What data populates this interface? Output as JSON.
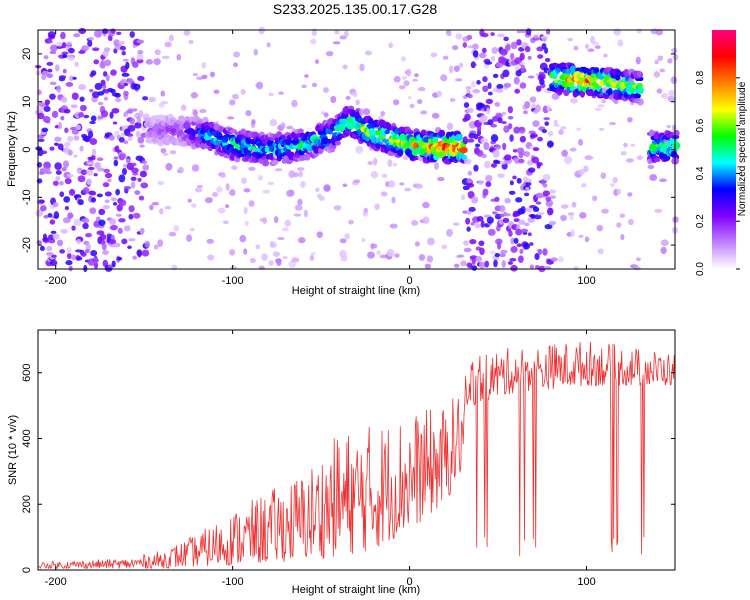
{
  "title": "S233.2025.135.00.17.G28",
  "chart_data": [
    {
      "type": "heatmap",
      "name": "spectrogram",
      "xlabel": "Height of straight line (km)",
      "ylabel": "Frequency (Hz)",
      "xlim": [
        -210,
        150
      ],
      "ylim": [
        -25,
        25
      ],
      "xticks": [
        -200,
        -100,
        0,
        100
      ],
      "yticks": [
        -20,
        -10,
        0,
        10,
        20
      ],
      "colorbar": {
        "label": "Normalized spectral amplitude",
        "range": [
          0,
          1
        ],
        "ticks": [
          0.0,
          0.2,
          0.4,
          0.6,
          0.8
        ],
        "colormap": [
          "#ffffff",
          "#c080ff",
          "#8000ff",
          "#0000ff",
          "#00ffff",
          "#00ff00",
          "#ffff00",
          "#ff8000",
          "#ff0000",
          "#ff0080"
        ]
      },
      "ridge": {
        "description_points": [
          {
            "x": -150,
            "freq": 4,
            "amp": 0.15
          },
          {
            "x": -130,
            "freq": 4,
            "amp": 0.2
          },
          {
            "x": -115,
            "freq": 3,
            "amp": 0.45
          },
          {
            "x": -100,
            "freq": 1,
            "amp": 0.55
          },
          {
            "x": -80,
            "freq": 0,
            "amp": 0.5
          },
          {
            "x": -60,
            "freq": 1,
            "amp": 0.55
          },
          {
            "x": -45,
            "freq": 3,
            "amp": 0.5
          },
          {
            "x": -35,
            "freq": 6,
            "amp": 0.6
          },
          {
            "x": -25,
            "freq": 4,
            "amp": 0.65
          },
          {
            "x": -10,
            "freq": 2,
            "amp": 0.7
          },
          {
            "x": 0,
            "freq": 1,
            "amp": 0.75
          },
          {
            "x": 10,
            "freq": 0.5,
            "amp": 0.85
          },
          {
            "x": 20,
            "freq": 0.5,
            "amp": 0.95
          },
          {
            "x": 30,
            "freq": 0.5,
            "amp": 0.9
          },
          {
            "x": 80,
            "freq": 15,
            "amp": 0.7
          },
          {
            "x": 95,
            "freq": 14.5,
            "amp": 0.9
          },
          {
            "x": 110,
            "freq": 14,
            "amp": 0.75
          },
          {
            "x": 130,
            "freq": 13,
            "amp": 0.6
          },
          {
            "x": 135,
            "freq": 0.5,
            "amp": 0.6
          },
          {
            "x": 150,
            "freq": 0.5,
            "amp": 0.6
          }
        ]
      },
      "noise_regions": [
        {
          "x_from": -210,
          "x_to": -150,
          "amp": 0.3
        },
        {
          "x_from": 30,
          "x_to": 80,
          "amp": 0.3
        }
      ]
    },
    {
      "type": "line",
      "name": "snr",
      "xlabel": "Height of straight line (km)",
      "ylabel": "SNR (10 * v/v)",
      "xlim": [
        -210,
        150
      ],
      "ylim": [
        0,
        730
      ],
      "xticks": [
        -200,
        -100,
        0,
        100
      ],
      "yticks": [
        0,
        200,
        400,
        600
      ],
      "color": "#f03030",
      "envelope": [
        {
          "x": -210,
          "lo": 5,
          "hi": 25
        },
        {
          "x": -160,
          "lo": 5,
          "hi": 35
        },
        {
          "x": -140,
          "lo": 5,
          "hi": 60
        },
        {
          "x": -120,
          "lo": 10,
          "hi": 110
        },
        {
          "x": -100,
          "lo": 15,
          "hi": 180
        },
        {
          "x": -80,
          "lo": 20,
          "hi": 240
        },
        {
          "x": -60,
          "lo": 30,
          "hi": 300
        },
        {
          "x": -40,
          "lo": 40,
          "hi": 420
        },
        {
          "x": -20,
          "lo": 60,
          "hi": 450
        },
        {
          "x": 0,
          "lo": 120,
          "hi": 480
        },
        {
          "x": 20,
          "lo": 200,
          "hi": 500
        },
        {
          "x": 30,
          "lo": 300,
          "hi": 560
        },
        {
          "x": 35,
          "lo": 500,
          "hi": 660
        },
        {
          "x": 60,
          "lo": 540,
          "hi": 680
        },
        {
          "x": 100,
          "lo": 560,
          "hi": 700
        },
        {
          "x": 150,
          "lo": 560,
          "hi": 660
        }
      ],
      "dropouts": {
        "x_from": 35,
        "x_to": 150,
        "low": [
          40,
          100
        ]
      }
    }
  ]
}
